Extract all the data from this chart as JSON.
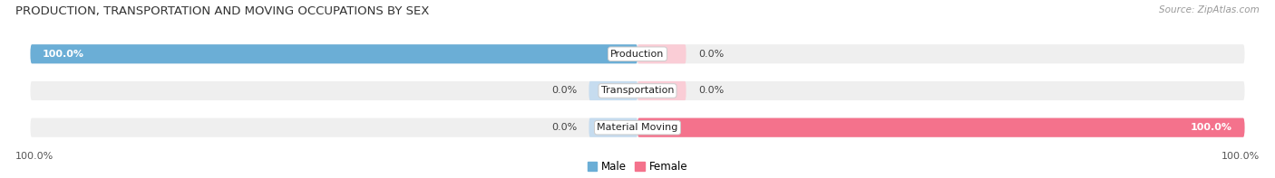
{
  "title": "PRODUCTION, TRANSPORTATION AND MOVING OCCUPATIONS BY SEX",
  "source": "Source: ZipAtlas.com",
  "categories": [
    "Production",
    "Transportation",
    "Material Moving"
  ],
  "male_values": [
    100.0,
    0.0,
    0.0
  ],
  "female_values": [
    0.0,
    0.0,
    100.0
  ],
  "male_color": "#6BAED6",
  "female_color": "#F4728C",
  "male_color_light": "#C6DCEF",
  "female_color_light": "#FACDD6",
  "bar_bg_color": "#EFEFEF",
  "bar_height": 0.52,
  "axis_label_left": "100.0%",
  "axis_label_right": "100.0%",
  "title_fontsize": 9.5,
  "source_fontsize": 7.5,
  "value_fontsize": 8,
  "cat_fontsize": 8,
  "legend_fontsize": 8.5,
  "xlim_left": -105,
  "xlim_right": 105
}
